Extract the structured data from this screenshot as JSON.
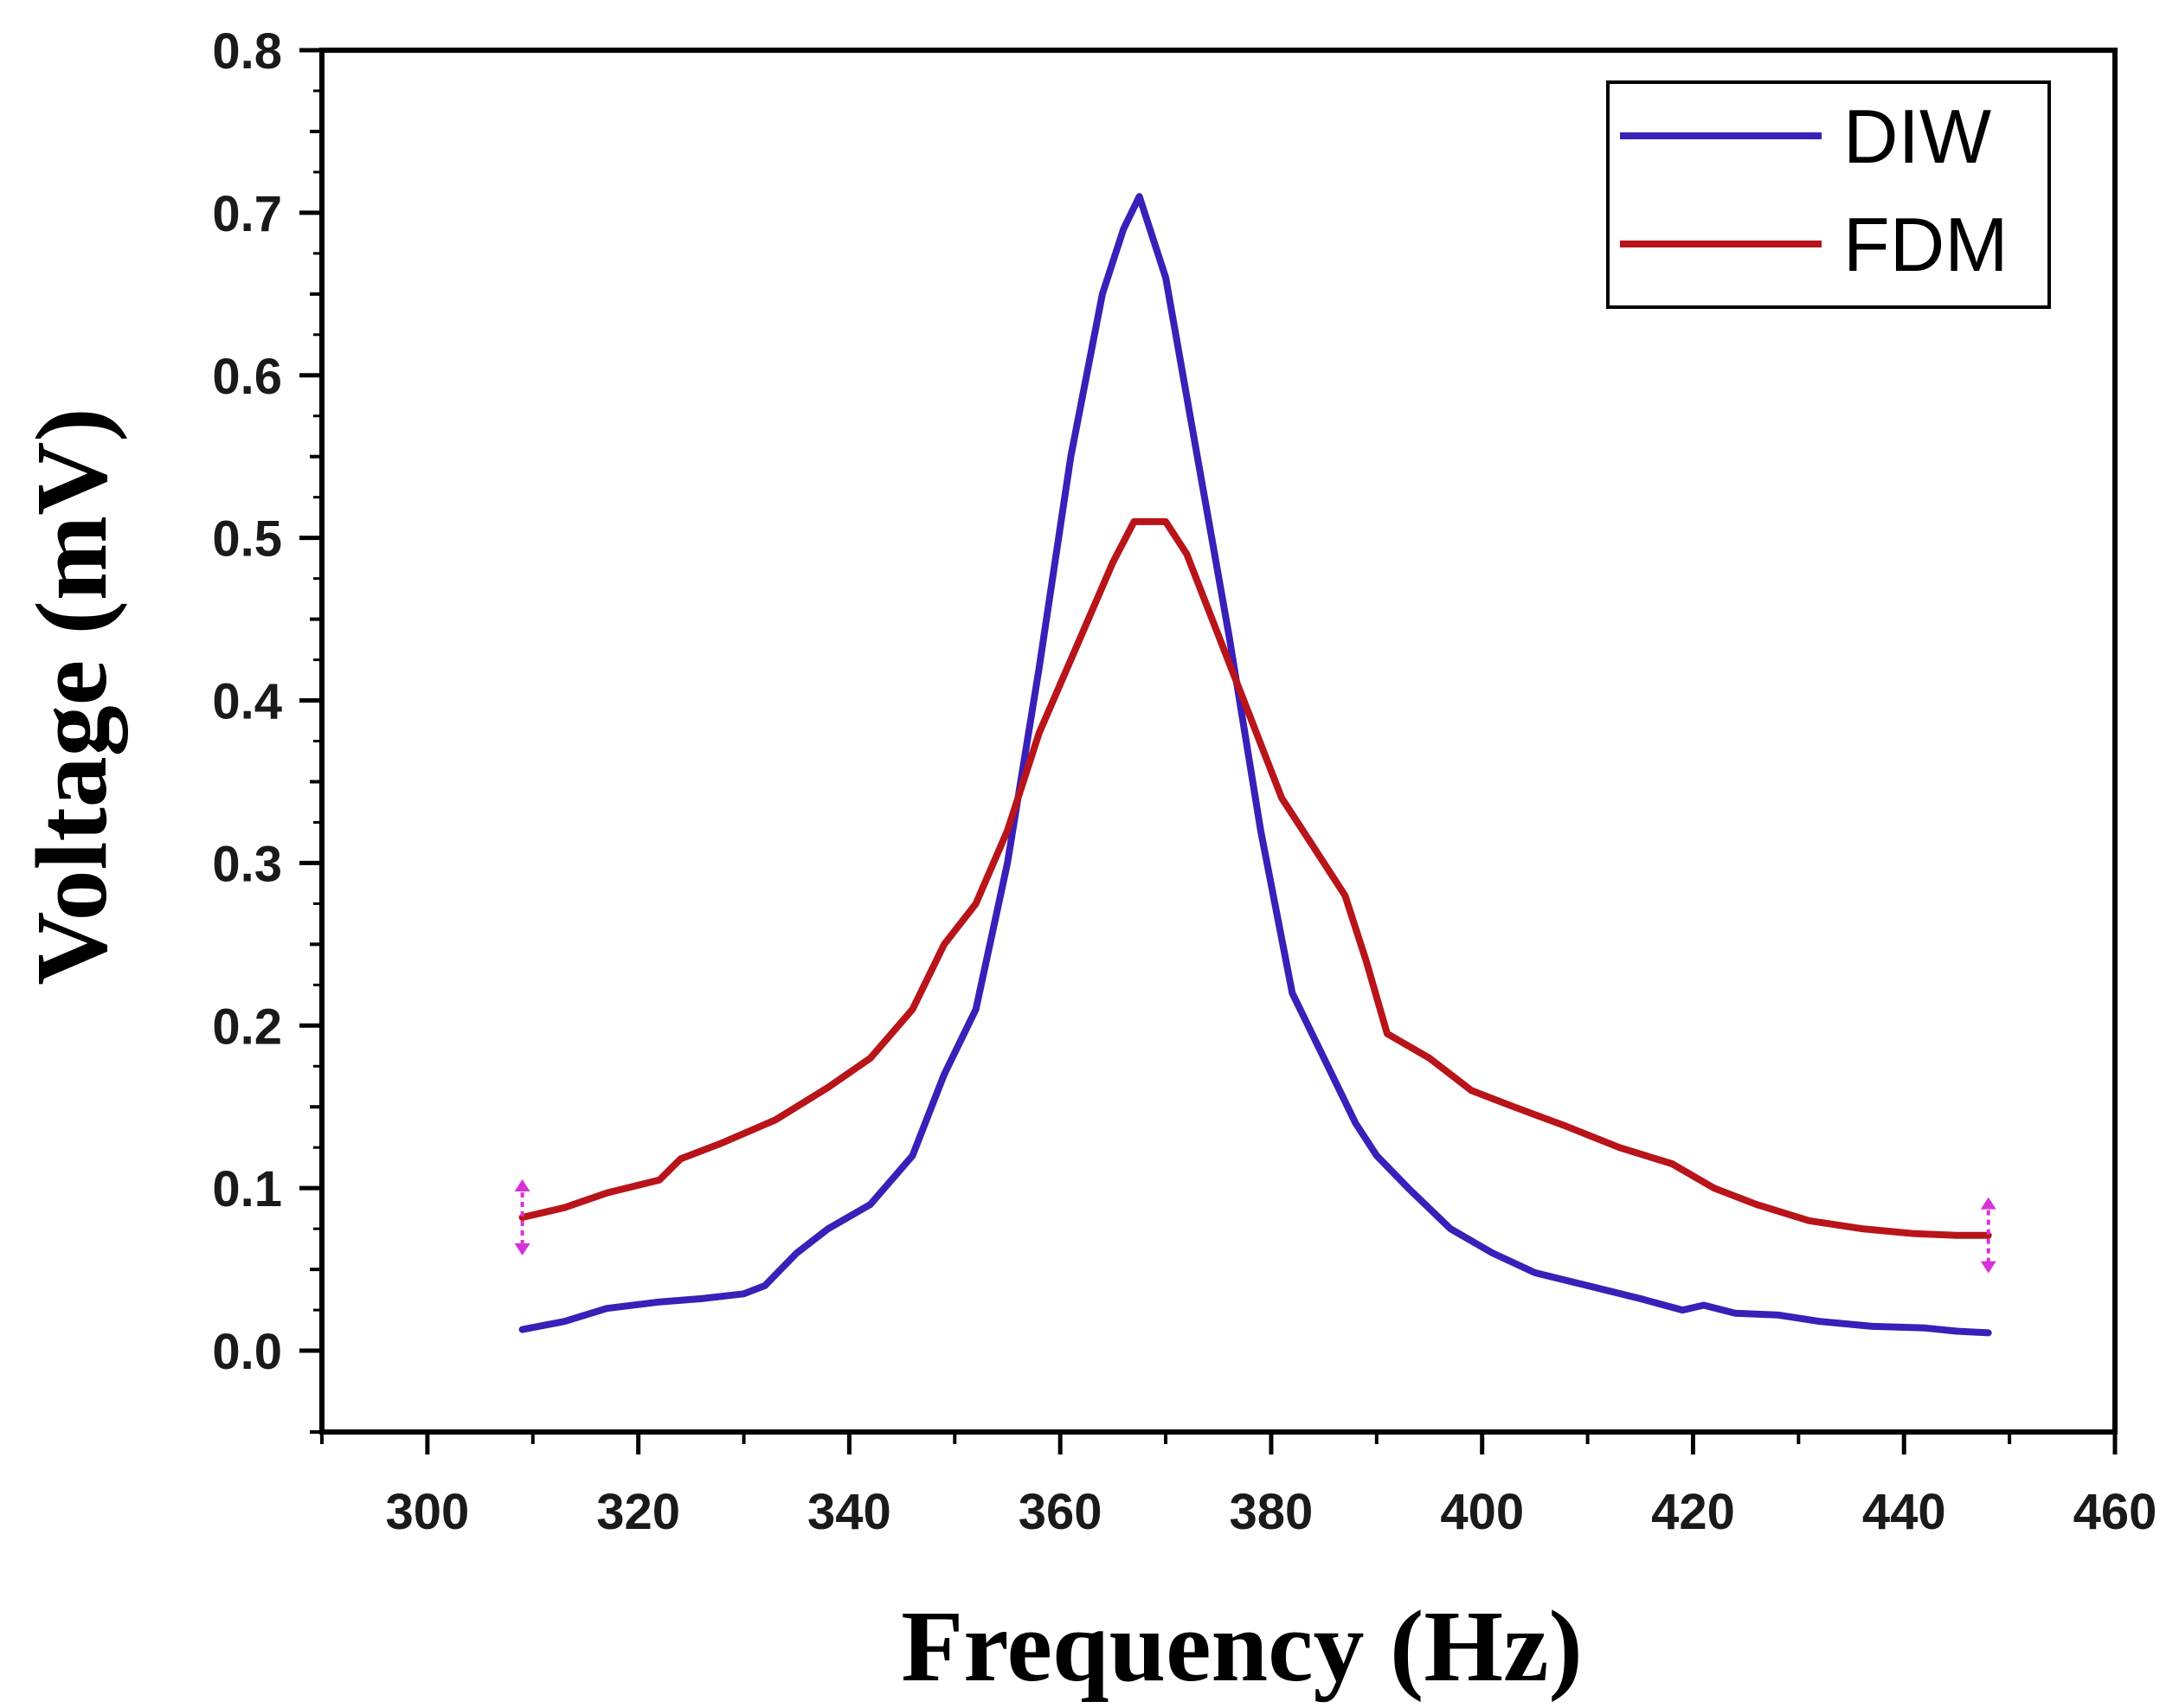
{
  "chart_data": {
    "type": "line",
    "title": "",
    "xlabel": "Frequency (Hz)",
    "ylabel": "Voltage (mV)",
    "xlim": [
      290,
      460
    ],
    "ylim": [
      -0.05,
      0.8
    ],
    "xticks": [
      300,
      320,
      340,
      360,
      380,
      400,
      420,
      440,
      460
    ],
    "yticks": [
      0.0,
      0.1,
      0.2,
      0.3,
      0.4,
      0.5,
      0.6,
      0.7,
      0.8
    ],
    "xtick_labels": [
      "300",
      "320",
      "340",
      "360",
      "380",
      "400",
      "420",
      "440",
      "460"
    ],
    "ytick_labels": [
      "0.0",
      "0.1",
      "0.2",
      "0.3",
      "0.4",
      "0.5",
      "0.6",
      "0.7",
      "0.8"
    ],
    "legend_position": "top-right",
    "series": [
      {
        "name": "DIW",
        "color": "#3a1fb8",
        "x": [
          309,
          313,
          317,
          322,
          326,
          330,
          332,
          335,
          338,
          342,
          346,
          349,
          352,
          355,
          358,
          361,
          364,
          366,
          367.5,
          370,
          373,
          376,
          379,
          382,
          385,
          388,
          390,
          393,
          397,
          401,
          405,
          410,
          415,
          419,
          421,
          424,
          428,
          432,
          437,
          442,
          445,
          448
        ],
        "y": [
          0.013,
          0.018,
          0.026,
          0.03,
          0.032,
          0.035,
          0.04,
          0.06,
          0.075,
          0.09,
          0.12,
          0.17,
          0.21,
          0.3,
          0.42,
          0.55,
          0.65,
          0.69,
          0.71,
          0.66,
          0.55,
          0.44,
          0.32,
          0.22,
          0.18,
          0.14,
          0.12,
          0.1,
          0.075,
          0.06,
          0.048,
          0.04,
          0.032,
          0.025,
          0.028,
          0.023,
          0.022,
          0.018,
          0.015,
          0.014,
          0.012,
          0.011
        ]
      },
      {
        "name": "FDM",
        "color": "#b8141a",
        "x": [
          309,
          313,
          317,
          322,
          324,
          328,
          333,
          338,
          342,
          346,
          349,
          352,
          355,
          358,
          362,
          365,
          367,
          370,
          372,
          375,
          378,
          381,
          384,
          387,
          389,
          391,
          395,
          399,
          403,
          408,
          413,
          418,
          422,
          426,
          431,
          436,
          441,
          445,
          448
        ],
        "y": [
          0.082,
          0.088,
          0.097,
          0.105,
          0.118,
          0.128,
          0.142,
          0.162,
          0.18,
          0.21,
          0.25,
          0.275,
          0.32,
          0.38,
          0.44,
          0.485,
          0.51,
          0.51,
          0.49,
          0.44,
          0.39,
          0.34,
          0.31,
          0.28,
          0.24,
          0.195,
          0.18,
          0.16,
          0.15,
          0.138,
          0.125,
          0.115,
          0.1,
          0.09,
          0.08,
          0.075,
          0.072,
          0.071,
          0.071
        ]
      }
    ]
  }
}
